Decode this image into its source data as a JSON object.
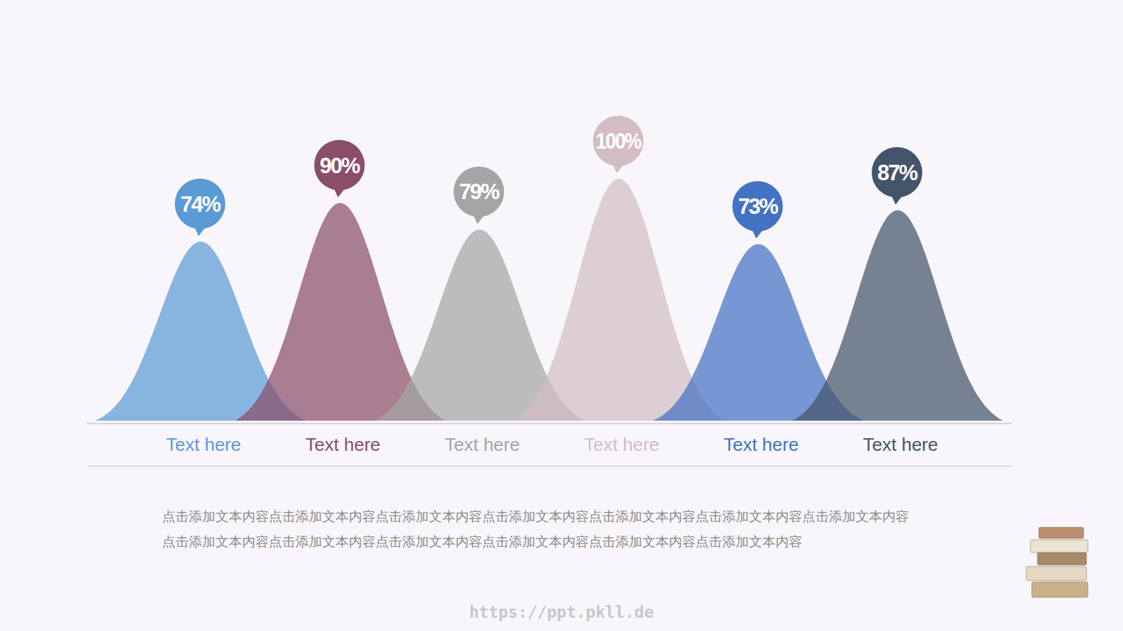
{
  "chart_data": {
    "type": "bell",
    "categories": [
      "Text here",
      "Text here",
      "Text here",
      "Text here",
      "Text here",
      "Text here"
    ],
    "values": [
      74,
      90,
      79,
      100,
      73,
      87
    ],
    "value_labels": [
      "74%",
      "90%",
      "79%",
      "100%",
      "73%",
      "87%"
    ],
    "colors": [
      "#5b9bd5",
      "#8a4f66",
      "#a5a5a7",
      "#d3bcc6",
      "#4472c4",
      "#44546a"
    ],
    "ylim": [
      0,
      100
    ],
    "data_labels": true,
    "tick_labels": "x"
  },
  "body_text": "点击添加文本内容点击添加文本内容点击添加文本内容点击添加文本内容点击添加文本内容点击添加文本内容点击添加文本内容点击添加文本内容点击添加文本内容点击添加文本内容点击添加文本内容点击添加文本内容点击添加文本内容",
  "footer_url": "https://ppt.pkll.de"
}
